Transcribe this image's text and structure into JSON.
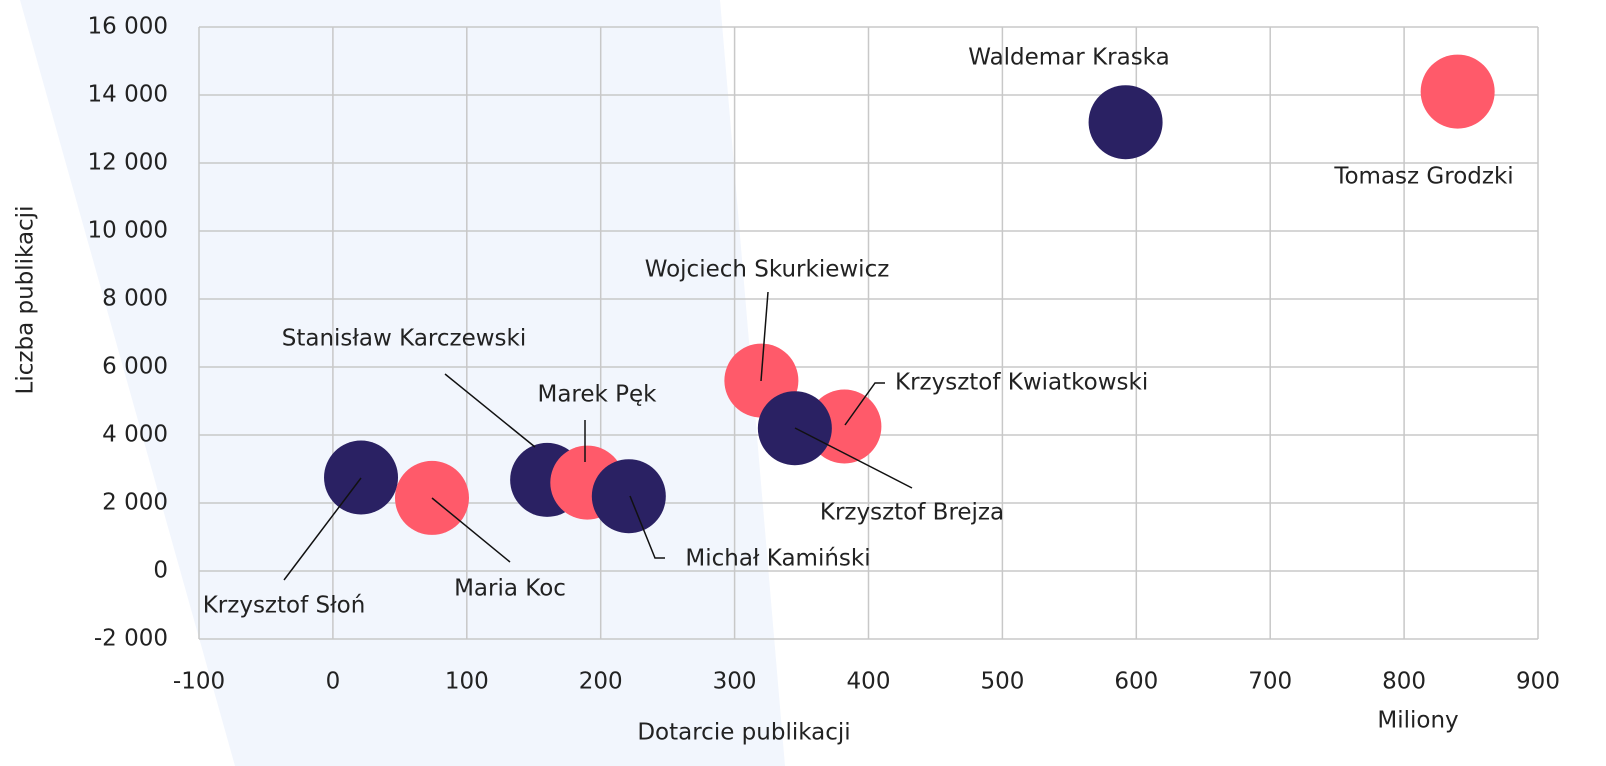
{
  "chart_data": {
    "type": "scatter",
    "x_label": "Dotarcie publikacji",
    "x_unit": "Miliony",
    "y_label": "Liczba publikacji",
    "xlim": [
      -100,
      900
    ],
    "xticks": [
      -100,
      0,
      100,
      200,
      300,
      400,
      500,
      600,
      700,
      800,
      900
    ],
    "ylim": [
      -2000,
      16000
    ],
    "yticks": [
      {
        "value": -2000,
        "label": "-2 000"
      },
      0,
      {
        "value": 2000,
        "label": "2 000"
      },
      {
        "value": 4000,
        "label": "4 000"
      },
      {
        "value": 6000,
        "label": "6 000"
      },
      {
        "value": 8000,
        "label": "8 000"
      },
      {
        "value": 10000,
        "label": "10 000"
      },
      {
        "value": 12000,
        "label": "12 000"
      },
      {
        "value": 14000,
        "label": "14 000"
      },
      {
        "value": 16000,
        "label": "16 000"
      }
    ],
    "grid": true,
    "point_labels": [
      "Krzysztof Słoń",
      "Maria Koc",
      "Stanisław Karczewski",
      "Marek Pęk",
      "Michał Kamiński",
      "Wojciech Skurkiewicz",
      "Krzysztof Kwiatkowski",
      "Krzysztof Brejza",
      "Waldemar Kraska",
      "Tomasz Grodzki"
    ],
    "x": [
      21,
      74,
      160,
      190,
      221,
      320,
      382,
      345,
      592,
      840
    ],
    "values": [
      2750,
      2150,
      2680,
      2600,
      2200,
      5600,
      4250,
      4200,
      13200,
      14100
    ],
    "colors": [
      "#2a2163",
      "#ff5a6a",
      "#2a2163",
      "#ff5a6a",
      "#2a2163",
      "#ff5a6a",
      "#ff5a6a",
      "#2a2163",
      "#2a2163",
      "#ff5a6a"
    ]
  }
}
